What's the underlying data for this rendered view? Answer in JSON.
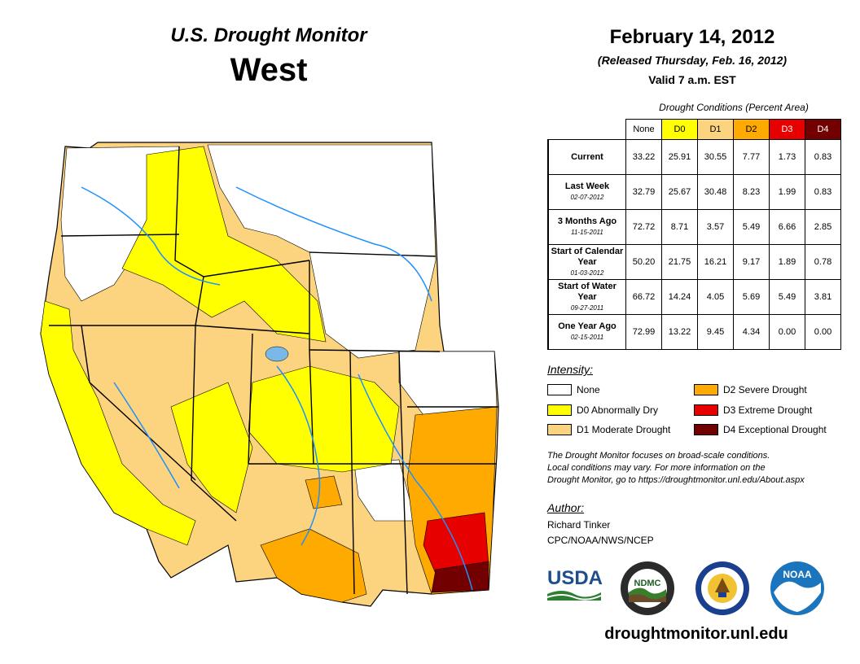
{
  "header": {
    "title": "U.S. Drought Monitor",
    "region": "West",
    "date": "February 14, 2012",
    "released": "(Released Thursday, Feb. 16, 2012)",
    "valid": "Valid 7 a.m. EST"
  },
  "table": {
    "caption": "Drought Conditions (Percent Area)",
    "columns": [
      "None",
      "D0",
      "D1",
      "D2",
      "D3",
      "D4"
    ],
    "column_colors": [
      "#ffffff",
      "#ffff00",
      "#fcd37f",
      "#ffaa00",
      "#e60000",
      "#730000"
    ],
    "rows": [
      {
        "label": "Current",
        "sub": "",
        "values": [
          "33.22",
          "25.91",
          "30.55",
          "7.77",
          "1.73",
          "0.83"
        ]
      },
      {
        "label": "Last Week",
        "sub": "02-07-2012",
        "values": [
          "32.79",
          "25.67",
          "30.48",
          "8.23",
          "1.99",
          "0.83"
        ]
      },
      {
        "label": "3 Months Ago",
        "sub": "11-15-2011",
        "values": [
          "72.72",
          "8.71",
          "3.57",
          "5.49",
          "6.66",
          "2.85"
        ]
      },
      {
        "label": "Start of Calendar Year",
        "sub": "01-03-2012",
        "values": [
          "50.20",
          "21.75",
          "16.21",
          "9.17",
          "1.89",
          "0.78"
        ]
      },
      {
        "label": "Start of Water Year",
        "sub": "09-27-2011",
        "values": [
          "66.72",
          "14.24",
          "4.05",
          "5.69",
          "5.49",
          "3.81"
        ]
      },
      {
        "label": "One Year Ago",
        "sub": "02-15-2011",
        "values": [
          "72.99",
          "13.22",
          "9.45",
          "4.34",
          "0.00",
          "0.00"
        ]
      }
    ]
  },
  "legend": {
    "title": "Intensity:",
    "items": [
      {
        "label": "None",
        "color": "#ffffff"
      },
      {
        "label": "D0 Abnormally Dry",
        "color": "#ffff00"
      },
      {
        "label": "D1 Moderate Drought",
        "color": "#fcd37f"
      },
      {
        "label": "D2 Severe Drought",
        "color": "#ffaa00"
      },
      {
        "label": "D3 Extreme Drought",
        "color": "#e60000"
      },
      {
        "label": "D4 Exceptional Drought",
        "color": "#730000"
      }
    ]
  },
  "note": {
    "line1": "The Drought Monitor focuses on broad-scale conditions.",
    "line2": "Local conditions may vary. For more information on the",
    "line3": "Drought Monitor, go to https://droughtmonitor.unl.edu/About.aspx"
  },
  "author": {
    "title": "Author:",
    "name": "Richard Tinker",
    "org": "CPC/NOAA/NWS/NCEP"
  },
  "logos": {
    "usda": "USDA",
    "ndmc": "NDMC",
    "noaa": "NOAA"
  },
  "url": "droughtmonitor.unl.edu"
}
